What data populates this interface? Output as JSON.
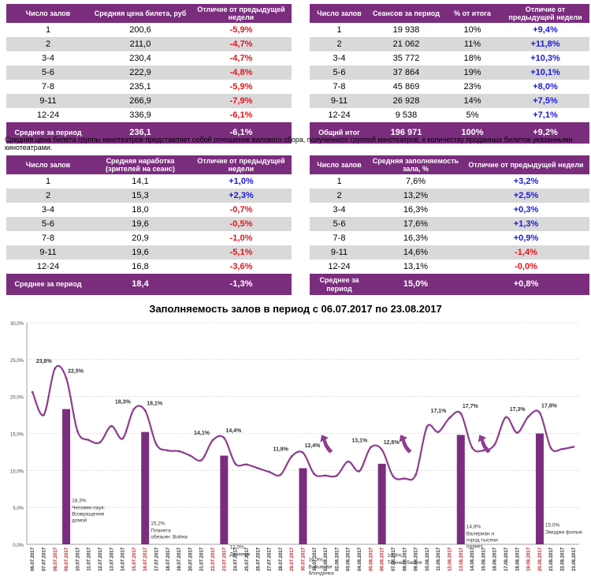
{
  "table1": {
    "headers": [
      "Число залов",
      "Средняя цена билета, руб",
      "Отличие от предыдущей недели"
    ],
    "rows": [
      [
        "1",
        "200,6",
        "-5,9%"
      ],
      [
        "2",
        "211,0",
        "-4,7%"
      ],
      [
        "3-4",
        "230,4",
        "-4,7%"
      ],
      [
        "5-6",
        "222,9",
        "-4,8%"
      ],
      [
        "7-8",
        "235,1",
        "-5,9%"
      ],
      [
        "9-11",
        "266,9",
        "-7,9%"
      ],
      [
        "12-24",
        "336,9",
        "-6,1%"
      ]
    ],
    "total": [
      "Среднее за период",
      "236,1",
      "-6,1%"
    ]
  },
  "table2": {
    "headers": [
      "Число залов",
      "Сеансов за период",
      "% от итога",
      "Отличие от предыдущей недели"
    ],
    "rows": [
      [
        "1",
        "19 938",
        "10%",
        "+9,4%"
      ],
      [
        "2",
        "21 062",
        "11%",
        "+11,8%"
      ],
      [
        "3-4",
        "35 772",
        "18%",
        "+10,3%"
      ],
      [
        "5-6",
        "37 864",
        "19%",
        "+10,1%"
      ],
      [
        "7-8",
        "45 869",
        "23%",
        "+8,0%"
      ],
      [
        "9-11",
        "26 928",
        "14%",
        "+7,5%"
      ],
      [
        "12-24",
        "9 538",
        "5%",
        "+7,1%"
      ]
    ],
    "total": [
      "Общий итог",
      "196 971",
      "100%",
      "+9,2%"
    ]
  },
  "note": "Средняя цена билета группы кинотеатров представляет собой отношение валового сбора, полученного группой кинотеатров, к количеству проданных билетов указанными кинотеатрами.",
  "table3": {
    "headers": [
      "Число залов",
      "Средняя наработка (зрителей на сеанс)",
      "Отличие от предыдущей недели"
    ],
    "rows": [
      [
        "1",
        "14,1",
        "+1,0%"
      ],
      [
        "2",
        "15,3",
        "+2,3%"
      ],
      [
        "3-4",
        "18,0",
        "-0,7%"
      ],
      [
        "5-6",
        "19,6",
        "-0,5%"
      ],
      [
        "7-8",
        "20,9",
        "-1,0%"
      ],
      [
        "9-11",
        "19,6",
        "-5,1%"
      ],
      [
        "12-24",
        "16,8",
        "-3,6%"
      ]
    ],
    "total": [
      "Среднее за период",
      "18,4",
      "-1,3%"
    ]
  },
  "table4": {
    "headers": [
      "Число залов",
      "Средняя заполняемость зала, %",
      "Отличие от предыдущей недели"
    ],
    "rows": [
      [
        "1",
        "7,6%",
        "+3,2%"
      ],
      [
        "2",
        "13,2%",
        "+2,5%"
      ],
      [
        "3-4",
        "16,3%",
        "+0,3%"
      ],
      [
        "5-6",
        "17,6%",
        "+1,3%"
      ],
      [
        "7-8",
        "16,3%",
        "+0,9%"
      ],
      [
        "9-11",
        "14,6%",
        "-1,4%"
      ],
      [
        "12-24",
        "13,1%",
        "-0,0%"
      ]
    ],
    "total": [
      "Среднее за период",
      "15,0%",
      "+0,8%"
    ]
  },
  "colors": {
    "purple": "#7a2d7d",
    "line": "#8e3d8f",
    "neg": "#e4141b",
    "pos": "#1a1ad8"
  },
  "chart_data": {
    "type": "line",
    "title": "Заполняемость залов в период с 06.07.2017 по 23.08.2017",
    "ylim": [
      0,
      30
    ],
    "yticks": [
      "0,0%",
      "5,0%",
      "10,0%",
      "15,0%",
      "20,0%",
      "25,0%",
      "30,0%"
    ],
    "x": [
      "06.07.2017",
      "07.07.2017",
      "08.07.2017",
      "09.07.2017",
      "10.07.2017",
      "11.07.2017",
      "12.07.2017",
      "13.07.2017",
      "14.07.2017",
      "15.07.2017",
      "16.07.2017",
      "17.07.2017",
      "18.07.2017",
      "19.07.2017",
      "20.07.2017",
      "21.07.2017",
      "22.07.2017",
      "23.07.2017",
      "24.07.2017",
      "25.07.2017",
      "26.07.2017",
      "27.07.2017",
      "28.07.2017",
      "29.07.2017",
      "30.07.2017",
      "31.07.2017",
      "01.08.2017",
      "02.08.2017",
      "03.08.2017",
      "04.08.2017",
      "05.08.2017",
      "06.08.2017",
      "07.08.2017",
      "08.08.2017",
      "09.08.2017",
      "10.08.2017",
      "11.08.2017",
      "12.08.2017",
      "13.08.2017",
      "14.08.2017",
      "15.08.2017",
      "16.08.2017",
      "17.08.2017",
      "18.08.2017",
      "19.08.2017",
      "20.08.2017",
      "21.08.2017",
      "22.08.2017",
      "23.08.2017"
    ],
    "weekend_dates": [
      "08.07.2017",
      "09.07.2017",
      "15.07.2017",
      "16.07.2017",
      "22.07.2017",
      "23.07.2017",
      "29.07.2017",
      "30.07.2017",
      "05.08.2017",
      "06.08.2017",
      "12.08.2017",
      "13.08.2017",
      "19.08.2017",
      "20.08.2017"
    ],
    "series": [
      {
        "name": "Заполняемость",
        "values": [
          20.6,
          17.5,
          23.8,
          22.5,
          15.3,
          14.1,
          13.8,
          16.0,
          14.3,
          18.3,
          18.1,
          13.5,
          12.7,
          12.6,
          12.0,
          11.4,
          14.1,
          14.4,
          10.9,
          10.8,
          10.3,
          9.8,
          9.4,
          11.9,
          12.4,
          9.5,
          9.3,
          9.3,
          11.2,
          9.9,
          13.1,
          12.8,
          9.2,
          8.9,
          9.4,
          15.9,
          15.2,
          17.1,
          17.7,
          13.1,
          12.7,
          13.5,
          17.2,
          15.1,
          17.3,
          17.8,
          13.0,
          12.9,
          13.2
        ]
      }
    ],
    "point_labels": [
      {
        "x": "08.07.2017",
        "label": "23,8%"
      },
      {
        "x": "09.07.2017",
        "label": "22,5%"
      },
      {
        "x": "15.07.2017",
        "label": "18,3%"
      },
      {
        "x": "16.07.2017",
        "label": "18,1%"
      },
      {
        "x": "22.07.2017",
        "label": "14,1%"
      },
      {
        "x": "23.07.2017",
        "label": "14,4%"
      },
      {
        "x": "29.07.2017",
        "label": "11,9%"
      },
      {
        "x": "30.07.2017",
        "label": "12,4%"
      },
      {
        "x": "05.08.2017",
        "label": "13,1%"
      },
      {
        "x": "06.08.2017",
        "label": "12,8%"
      },
      {
        "x": "12.08.2017",
        "label": "17,1%"
      },
      {
        "x": "13.08.2017",
        "label": "17,7%"
      },
      {
        "x": "19.08.2017",
        "label": "17,3%"
      },
      {
        "x": "20.08.2017",
        "label": "17,8%"
      }
    ],
    "bars": [
      {
        "x": "09.07.2017",
        "value": 18.3,
        "label": "18,3%",
        "film": "Человек-паук: Возвращение домой"
      },
      {
        "x": "16.07.2017",
        "value": 15.2,
        "label": "15,2%",
        "film": "Планета обезьян: Война"
      },
      {
        "x": "23.07.2017",
        "value": 12.0,
        "label": "12,0%",
        "film": "Дюнкерк"
      },
      {
        "x": "30.07.2017",
        "value": 10.3,
        "label": "10,3%",
        "film": "Взрывная блондинка"
      },
      {
        "x": "06.08.2017",
        "value": 10.9,
        "label": "10,9%",
        "film": "Темная башня"
      },
      {
        "x": "13.08.2017",
        "value": 14.8,
        "label": "14,8%",
        "film": "Валериан и город тысячи планет"
      },
      {
        "x": "20.08.2017",
        "value": 15.0,
        "label": "15,0%",
        "film": "Эмоджи фильм"
      }
    ],
    "arrows_near": [
      "01.08.2017",
      "08.08.2017",
      "15.08.2017"
    ]
  }
}
